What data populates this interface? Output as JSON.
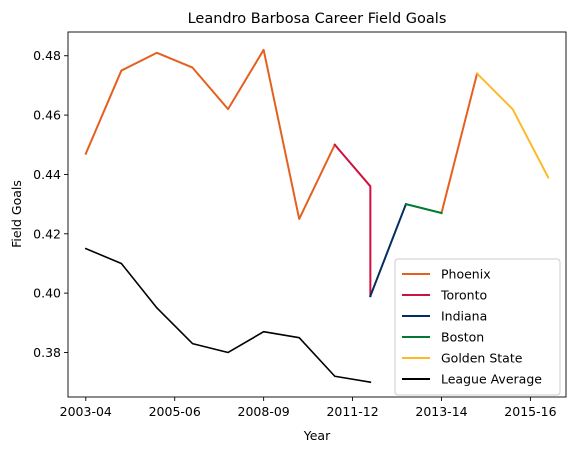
{
  "chart_data": {
    "type": "line",
    "title": "Leandro Barbosa Career Field Goals",
    "xlabel": "Year",
    "ylabel": "Field Goals",
    "xlim": [
      -0.5,
      13.5
    ],
    "ylim": [
      0.365,
      0.488
    ],
    "xticks": [
      {
        "pos": 0,
        "label": "2003-04"
      },
      {
        "pos": 2.5,
        "label": "2005-06"
      },
      {
        "pos": 5,
        "label": "2008-09"
      },
      {
        "pos": 7.5,
        "label": "2011-12"
      },
      {
        "pos": 10,
        "label": "2013-14"
      },
      {
        "pos": 12.5,
        "label": "2015-16"
      }
    ],
    "yticks": [
      0.38,
      0.4,
      0.42,
      0.44,
      0.46,
      0.48
    ],
    "ytick_labels": [
      "0.38",
      "0.40",
      "0.42",
      "0.44",
      "0.46",
      "0.48"
    ],
    "legend_position": "lower right",
    "series": [
      {
        "name": "Phoenix",
        "color": "#E56020",
        "width": 2,
        "x": [
          0,
          1,
          2,
          3,
          4,
          5,
          6,
          7
        ],
        "y": [
          0.447,
          0.475,
          0.481,
          0.476,
          0.462,
          0.482,
          0.425,
          0.45
        ],
        "x2": [
          10,
          11
        ],
        "y2": [
          0.427,
          0.474
        ]
      },
      {
        "name": "Toronto",
        "color": "#CE1141",
        "width": 2,
        "x": [
          7,
          8,
          8
        ],
        "y": [
          0.45,
          0.436,
          0.399
        ]
      },
      {
        "name": "Indiana",
        "color": "#002D62",
        "width": 2,
        "x": [
          8,
          9
        ],
        "y": [
          0.399,
          0.43
        ]
      },
      {
        "name": "Boston",
        "color": "#007A33",
        "width": 2,
        "x": [
          9,
          10
        ],
        "y": [
          0.43,
          0.427
        ]
      },
      {
        "name": "Golden State",
        "color": "#FDB927",
        "width": 2,
        "x": [
          11,
          12,
          13
        ],
        "y": [
          0.474,
          0.462,
          0.439
        ]
      },
      {
        "name": "League Average",
        "color": "#000000",
        "width": 1.6,
        "x": [
          0,
          1,
          2,
          3,
          4,
          5,
          6,
          7,
          8
        ],
        "y": [
          0.415,
          0.41,
          0.395,
          0.383,
          0.38,
          0.387,
          0.385,
          0.372,
          0.37
        ]
      }
    ]
  }
}
